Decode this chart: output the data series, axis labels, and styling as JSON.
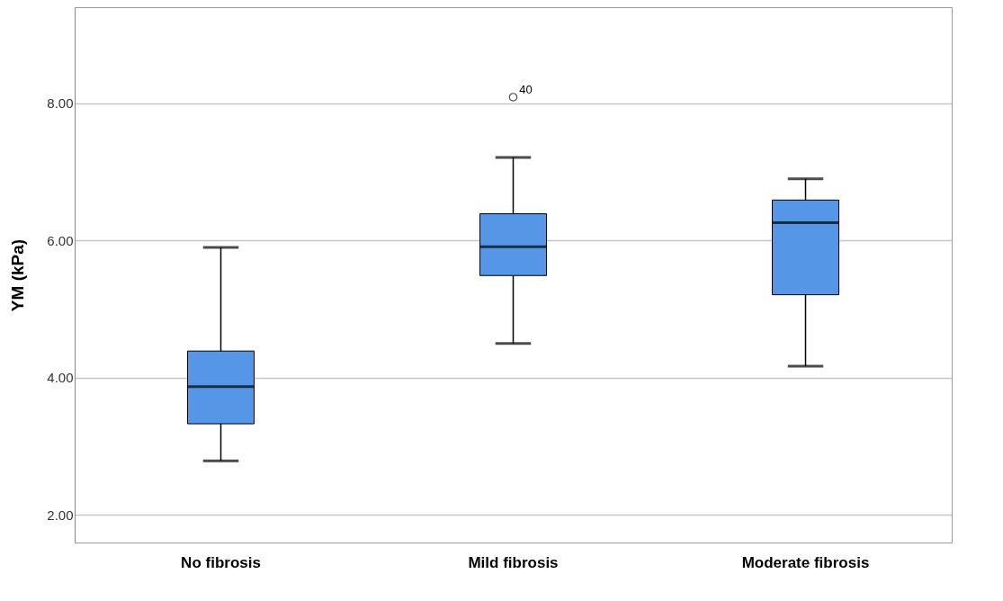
{
  "chart_data": {
    "type": "box",
    "ylabel": "YM (kPa)",
    "categories": [
      "No fibrosis",
      "Mild fibrosis",
      "Moderate fibrosis"
    ],
    "boxes": [
      {
        "low": 2.79,
        "q1": 3.33,
        "median": 3.87,
        "q3": 4.39,
        "high": 5.9
      },
      {
        "low": 4.5,
        "q1": 5.49,
        "median": 5.91,
        "q3": 6.39,
        "high": 7.21,
        "outliers": [
          8.09
        ]
      },
      {
        "low": 4.17,
        "q1": 5.21,
        "median": 6.26,
        "q3": 6.59,
        "high": 6.9
      }
    ],
    "color": "#5596e6",
    "ylim": [
      1.6,
      9.4
    ],
    "yticks": [
      {
        "value": 2,
        "label": "2.00"
      },
      {
        "value": 4,
        "label": "4.00"
      },
      {
        "value": 6,
        "label": "6.00"
      },
      {
        "value": 8,
        "label": "8.00"
      }
    ],
    "grid": "y",
    "annotations": [
      "40"
    ]
  }
}
